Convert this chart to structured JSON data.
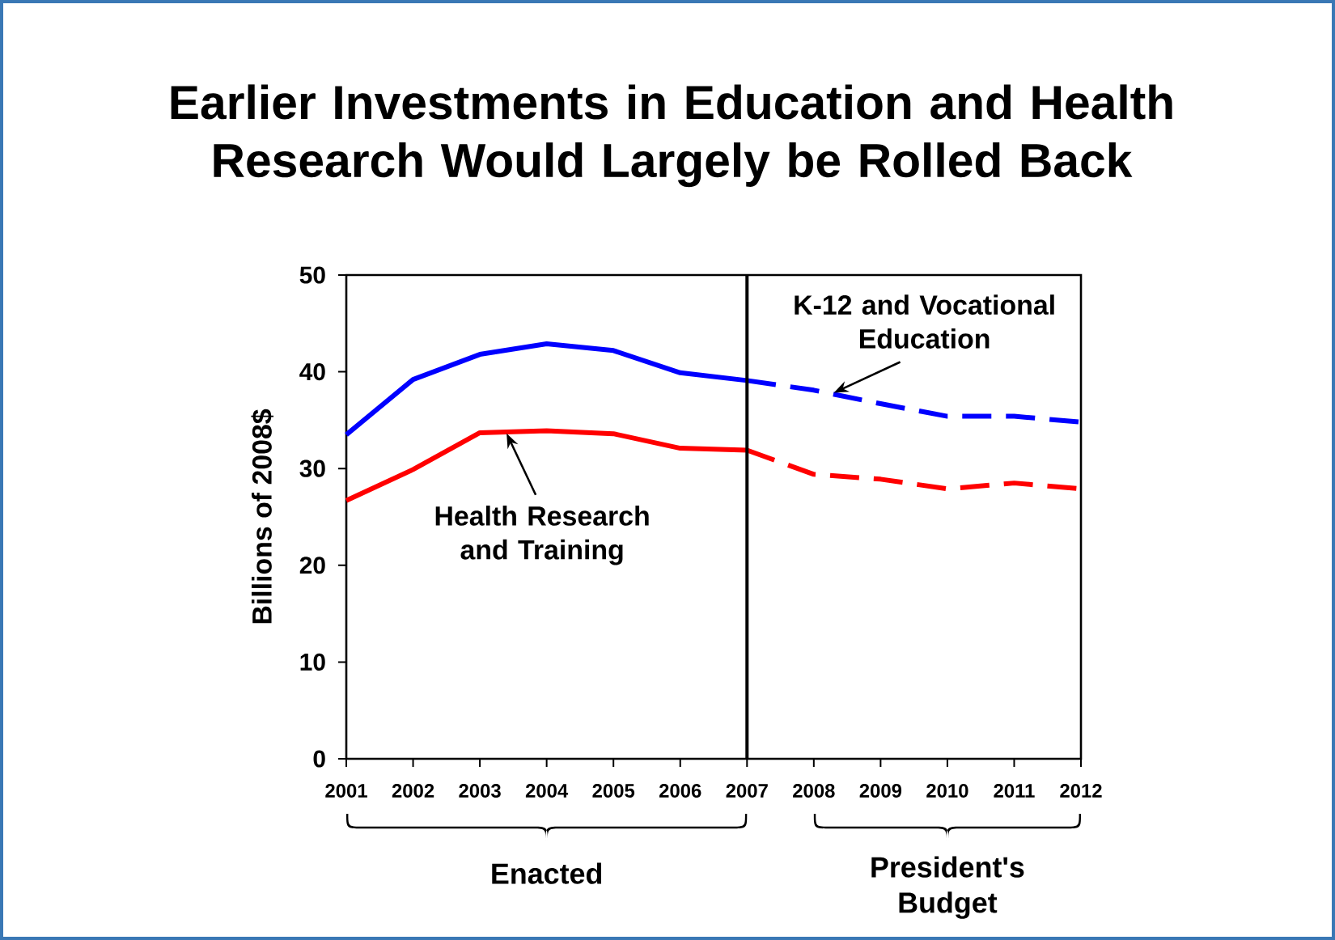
{
  "chart_data": {
    "type": "line",
    "title": "Earlier Investments in Education and Health Research Would Largely be Rolled Back",
    "ylabel": "Billions of 2008$",
    "xlim": [
      2001,
      2012
    ],
    "xticks": [
      2001,
      2002,
      2003,
      2004,
      2005,
      2006,
      2007,
      2008,
      2009,
      2010,
      2011,
      2012
    ],
    "ylim": [
      0,
      50
    ],
    "yticks": [
      0,
      10,
      20,
      30,
      40,
      50
    ],
    "marker": "none",
    "series": [
      {
        "color": "#0000ff",
        "line_style": "solid",
        "x": [
          2001,
          2002,
          2003,
          2004,
          2005,
          2006,
          2007
        ],
        "values": [
          33.5,
          39.2,
          41.8,
          42.9,
          42.2,
          39.9,
          39.1
        ]
      },
      {
        "color": "#0000ff",
        "line_style": "dashed",
        "x": [
          2007,
          2008,
          2009,
          2010,
          2011,
          2012
        ],
        "values": [
          39.1,
          38.1,
          36.7,
          35.4,
          35.4,
          34.8
        ]
      },
      {
        "color": "#ff0000",
        "line_style": "solid",
        "x": [
          2001,
          2002,
          2003,
          2004,
          2005,
          2006,
          2007
        ],
        "values": [
          26.7,
          29.9,
          33.7,
          33.9,
          33.6,
          32.1,
          31.9
        ]
      },
      {
        "color": "#ff0000",
        "line_style": "dashed",
        "x": [
          2007,
          2008,
          2009,
          2010,
          2011,
          2012
        ],
        "values": [
          31.9,
          29.4,
          28.9,
          27.9,
          28.5,
          27.9
        ]
      }
    ],
    "ref_lines": [
      {
        "axis": "x",
        "value": 2007,
        "color": "#000000"
      }
    ],
    "annotations": [
      {
        "text": "K-12 and Vocational Education",
        "x": 2008.3,
        "y": 38
      },
      {
        "text": "Health Research and Training",
        "x": 2003.4,
        "y": 33.8
      },
      "Enacted",
      "President's Budget"
    ]
  }
}
